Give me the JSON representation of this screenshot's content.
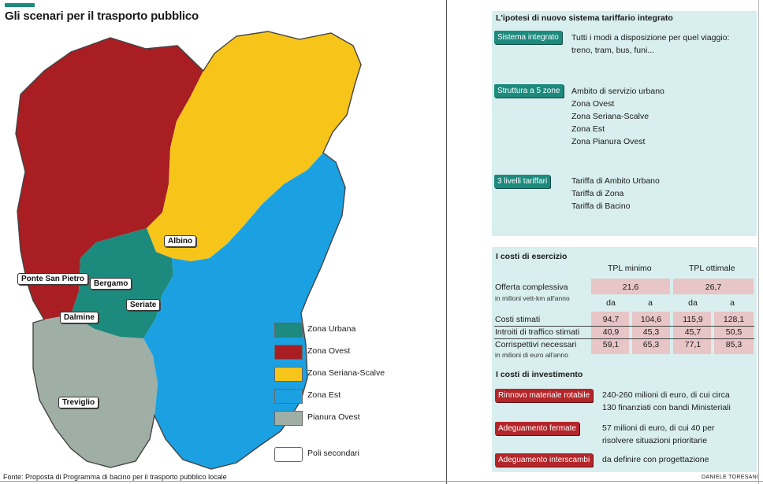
{
  "title": "Gli scenari per il trasporto pubblico",
  "map": {
    "cities": [
      {
        "id": "albino",
        "label": "Albino"
      },
      {
        "id": "ponte",
        "label": "Ponte San Pietro"
      },
      {
        "id": "bergamo",
        "label": "Bergamo"
      },
      {
        "id": "seriate",
        "label": "Seriate"
      },
      {
        "id": "dalmine",
        "label": "Dalmine"
      },
      {
        "id": "treviglio",
        "label": "Treviglio"
      }
    ],
    "colors": {
      "urbana": "#1d8a7e",
      "ovest": "#a81e23",
      "seriana": "#f7c51a",
      "est": "#1ba1e2",
      "pianura": "#9fafa5",
      "poli": "#ffffff"
    }
  },
  "legend": {
    "items": [
      {
        "label": "Zona Urbana"
      },
      {
        "label": "Zona Ovest"
      },
      {
        "label": "Zona Seriana-Scalve"
      },
      {
        "label": "Zona Est"
      },
      {
        "label": "Pianura Ovest"
      },
      {
        "label": "Poli secondari"
      }
    ]
  },
  "source": "Fonte: Proposta di Programma di bacino per il trasporto pubblico locale",
  "author": "DANIELE TORESANI",
  "system": {
    "title": "L'ipotesi di nuovo sistema tariffario integrato",
    "blocks": [
      {
        "tag": "Sistema integrato",
        "lines": [
          "Tutti i modi a disposizione per quel viaggio:",
          "treno, tram, bus, funi..."
        ]
      },
      {
        "tag": "Struttura a 5 zone",
        "lines": [
          "Ambito di servizio urbano",
          "Zona Ovest",
          "Zona Seriana-Scalve",
          "Zona Est",
          "Zona Pianura Ovest"
        ]
      },
      {
        "tag": "3 livelli tariffari",
        "lines": [
          "Tariffa di Ambito Urbano",
          "Tariffa di Zona",
          "Tariffa di Bacino"
        ]
      }
    ]
  },
  "costs": {
    "title": "I costi di esercizio",
    "col_min": "TPL minimo",
    "col_opt": "TPL ottimale",
    "offerta_label": "Offerta complessiva",
    "offerta_sub": "in milioni vett-km all'anno",
    "offerta_min": "21,6",
    "offerta_opt": "26,7",
    "da": "da",
    "a": "a",
    "rows": [
      {
        "label": "Costi stimati",
        "sub": "",
        "v1": "94,7",
        "v2": "104,6",
        "v3": "115,9",
        "v4": "128,1"
      },
      {
        "label": "Introiti di traffico stimati",
        "sub": "",
        "v1": "40,9",
        "v2": "45,3",
        "v3": "45,7",
        "v4": "50,5"
      },
      {
        "label": "Corrispettivi necessari",
        "sub": "in milioni di euro all'anno",
        "v1": "59,1",
        "v2": "65,3",
        "v3": "77,1",
        "v4": "85,3"
      }
    ]
  },
  "investments": {
    "title": "I costi di investimento",
    "items": [
      {
        "tag": "Rinnovo materiale rotabile",
        "lines": [
          "240-260 milioni di euro, di cui circa",
          "130 finanziati con bandi Ministeriali"
        ]
      },
      {
        "tag": "Adeguamento fermate",
        "lines": [
          "57 milioni di euro, di cui 40 per",
          "risolvere situazioni prioritarie"
        ]
      },
      {
        "tag": "Adeguamento interscambi",
        "lines": [
          "da definire con progettazione"
        ]
      }
    ]
  }
}
